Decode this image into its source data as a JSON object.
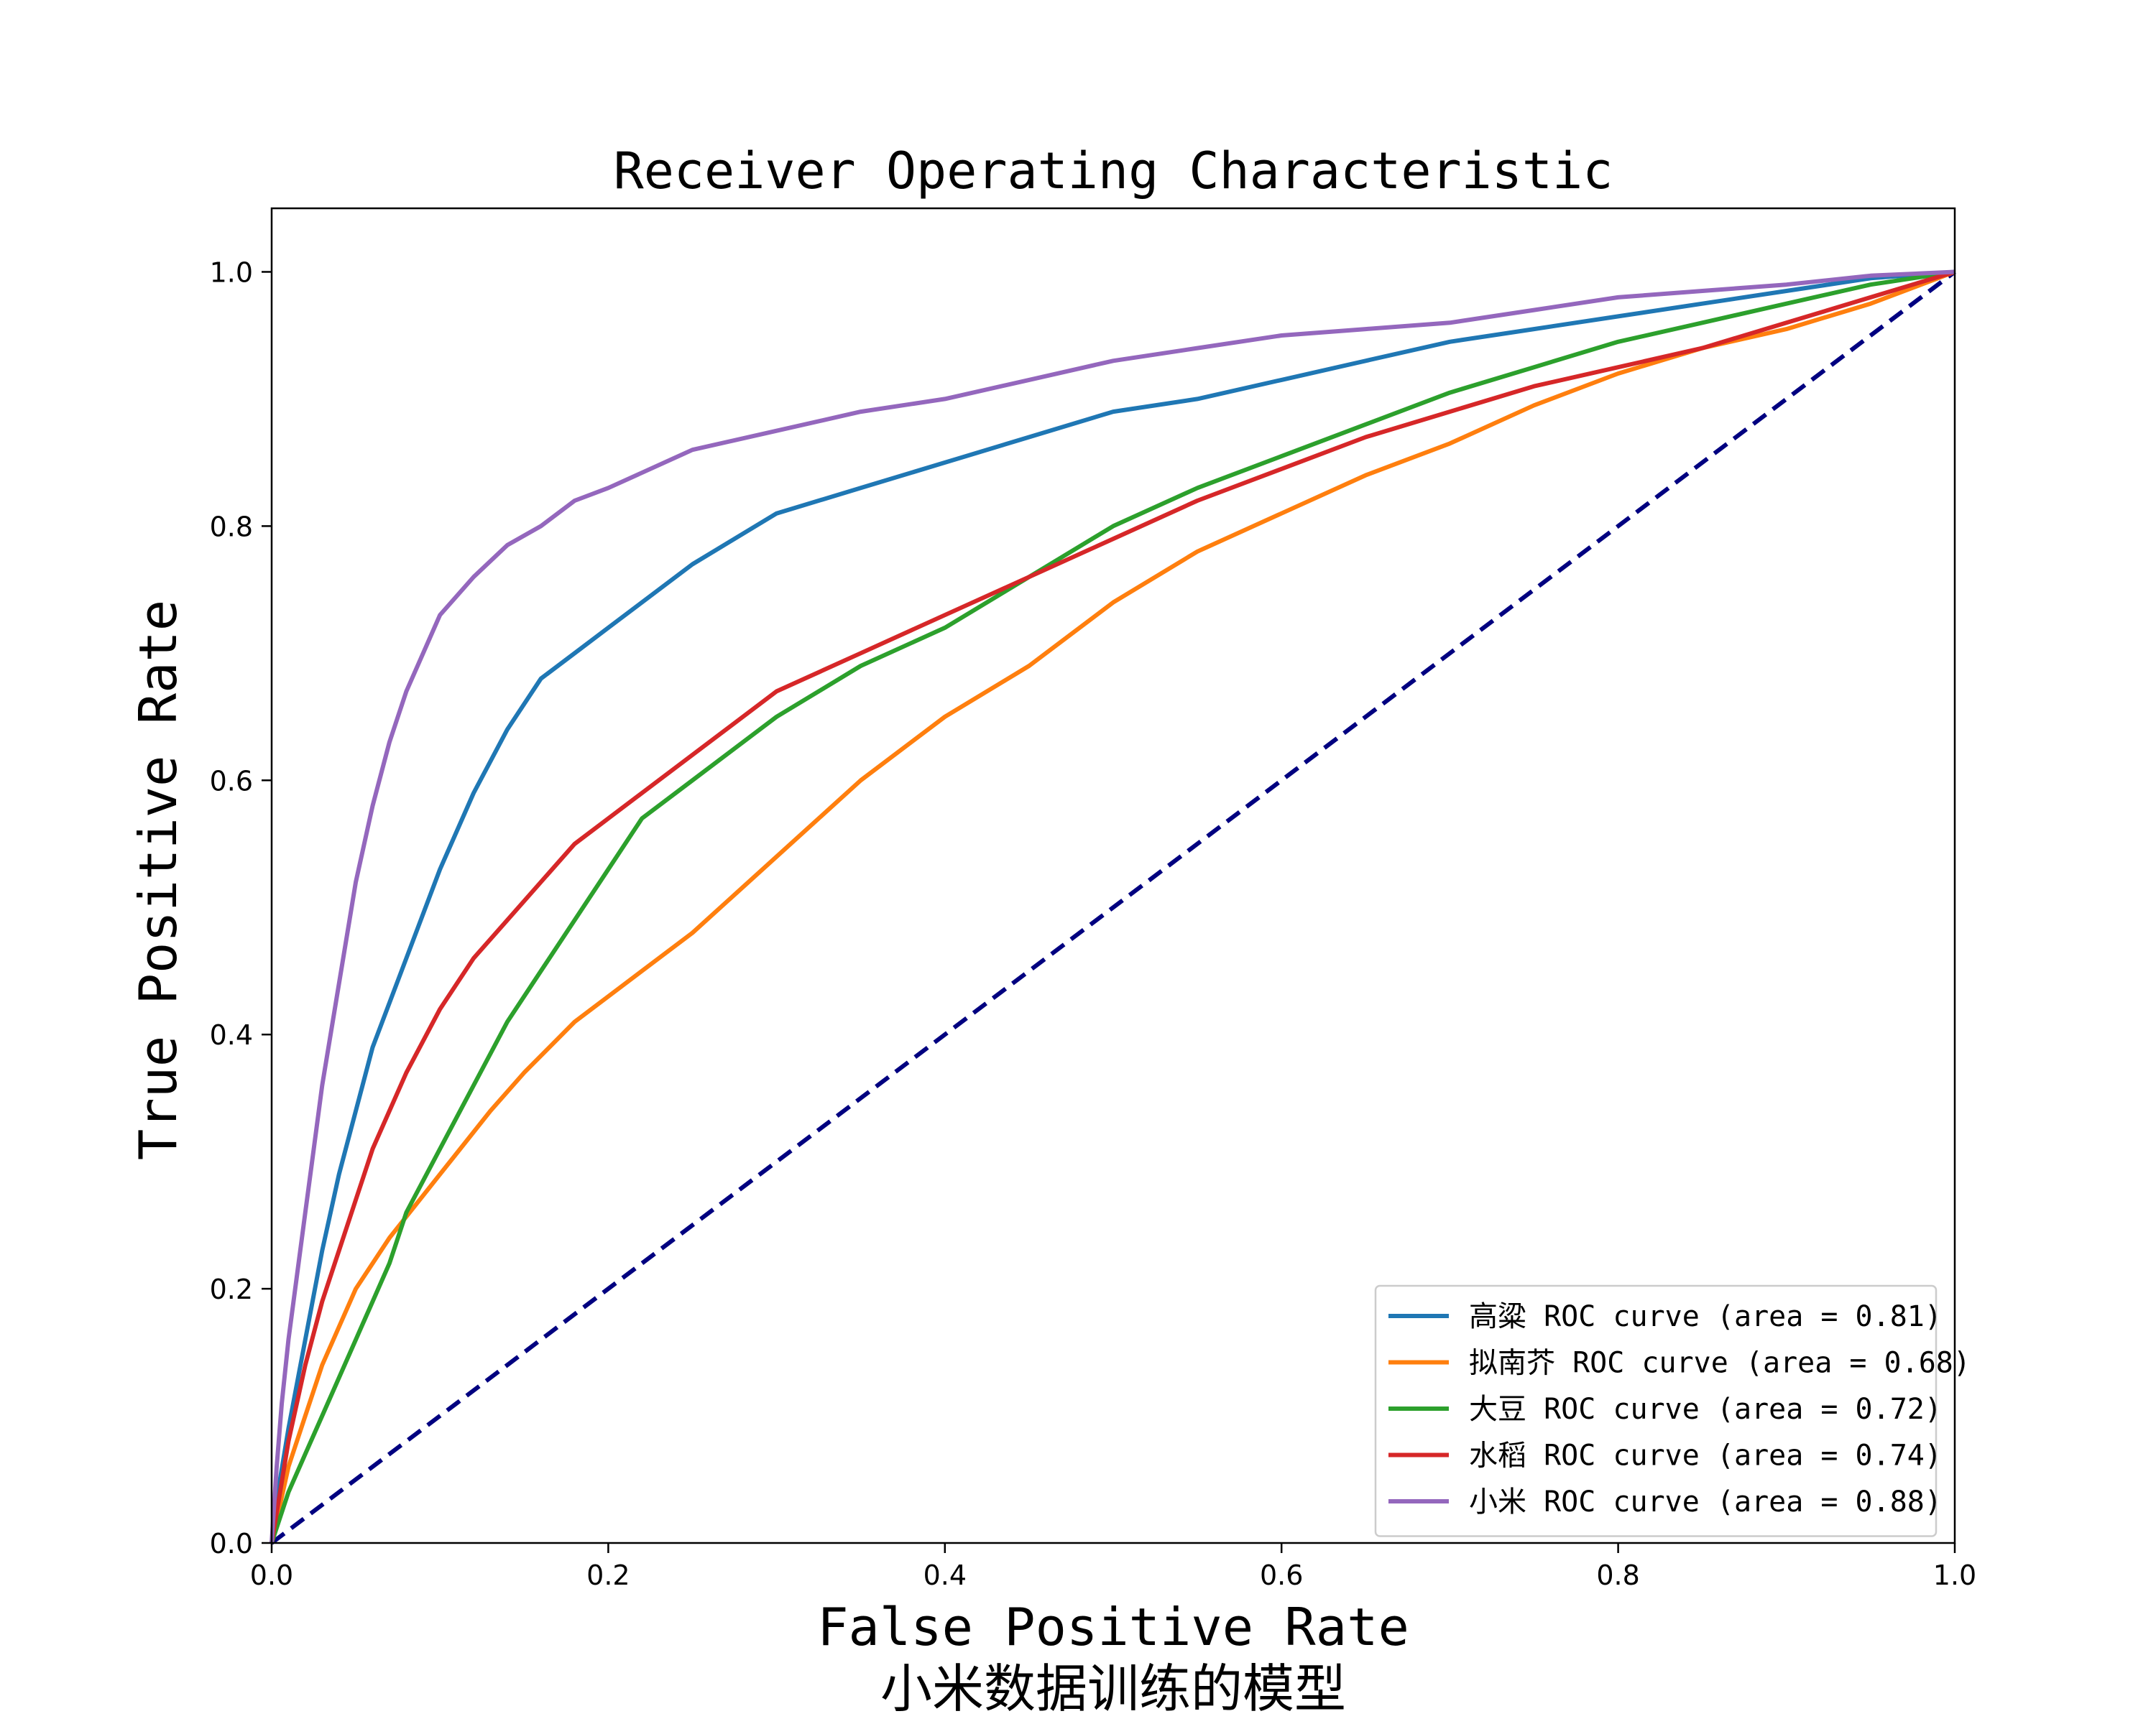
{
  "chart_data": {
    "type": "line",
    "title": "Receiver Operating Characteristic",
    "xlabel": "False Positive Rate",
    "xlabel_sub": "小米数据训练的模型",
    "ylabel": "True Positive Rate",
    "xlim": [
      0.0,
      1.0
    ],
    "ylim": [
      0.0,
      1.05
    ],
    "xticks": [
      "0.0",
      "0.2",
      "0.4",
      "0.6",
      "0.8",
      "1.0"
    ],
    "yticks": [
      "0.0",
      "0.2",
      "0.4",
      "0.6",
      "0.8",
      "1.0"
    ],
    "grid": false,
    "legend_position": "lower-right",
    "diagonal": {
      "x": [
        0,
        1
      ],
      "y": [
        0,
        1
      ],
      "color": "#000080",
      "style": "dashed"
    },
    "series": [
      {
        "name": "高粱 ROC curve (area = 0.81)",
        "color": "#1f77b4",
        "x": [
          0,
          0.005,
          0.01,
          0.02,
          0.03,
          0.04,
          0.05,
          0.06,
          0.08,
          0.1,
          0.12,
          0.14,
          0.16,
          0.18,
          0.2,
          0.25,
          0.3,
          0.35,
          0.4,
          0.45,
          0.5,
          0.55,
          0.6,
          0.65,
          0.7,
          0.75,
          0.8,
          0.85,
          0.9,
          0.95,
          1.0
        ],
        "y": [
          0,
          0.05,
          0.09,
          0.16,
          0.23,
          0.29,
          0.34,
          0.39,
          0.46,
          0.53,
          0.59,
          0.64,
          0.68,
          0.7,
          0.72,
          0.77,
          0.81,
          0.83,
          0.85,
          0.87,
          0.89,
          0.9,
          0.915,
          0.93,
          0.945,
          0.955,
          0.965,
          0.975,
          0.985,
          0.995,
          1.0
        ]
      },
      {
        "name": "拟南芥 ROC curve (area = 0.68)",
        "color": "#ff7f0e",
        "x": [
          0,
          0.005,
          0.01,
          0.02,
          0.03,
          0.04,
          0.05,
          0.07,
          0.1,
          0.13,
          0.15,
          0.18,
          0.2,
          0.25,
          0.3,
          0.35,
          0.4,
          0.45,
          0.5,
          0.55,
          0.6,
          0.65,
          0.7,
          0.75,
          0.8,
          0.85,
          0.9,
          0.95,
          1.0
        ],
        "y": [
          0,
          0.03,
          0.06,
          0.1,
          0.14,
          0.17,
          0.2,
          0.24,
          0.29,
          0.34,
          0.37,
          0.41,
          0.43,
          0.48,
          0.54,
          0.6,
          0.65,
          0.69,
          0.74,
          0.78,
          0.81,
          0.84,
          0.865,
          0.895,
          0.92,
          0.94,
          0.955,
          0.975,
          1.0
        ]
      },
      {
        "name": "大豆 ROC curve (area = 0.72)",
        "color": "#2ca02c",
        "x": [
          0,
          0.005,
          0.01,
          0.02,
          0.03,
          0.05,
          0.07,
          0.08,
          0.1,
          0.12,
          0.14,
          0.16,
          0.18,
          0.2,
          0.22,
          0.25,
          0.3,
          0.35,
          0.4,
          0.45,
          0.5,
          0.55,
          0.6,
          0.65,
          0.7,
          0.75,
          0.8,
          0.85,
          0.9,
          0.95,
          1.0
        ],
        "y": [
          0,
          0.02,
          0.04,
          0.07,
          0.1,
          0.16,
          0.22,
          0.26,
          0.31,
          0.36,
          0.41,
          0.45,
          0.49,
          0.53,
          0.57,
          0.6,
          0.65,
          0.69,
          0.72,
          0.76,
          0.8,
          0.83,
          0.855,
          0.88,
          0.905,
          0.925,
          0.945,
          0.96,
          0.975,
          0.99,
          1.0
        ]
      },
      {
        "name": "水稻 ROC curve (area = 0.74)",
        "color": "#d62728",
        "x": [
          0,
          0.005,
          0.01,
          0.02,
          0.03,
          0.04,
          0.05,
          0.06,
          0.08,
          0.1,
          0.12,
          0.14,
          0.16,
          0.18,
          0.2,
          0.22,
          0.25,
          0.3,
          0.35,
          0.4,
          0.45,
          0.5,
          0.55,
          0.6,
          0.65,
          0.7,
          0.75,
          0.8,
          0.85,
          0.9,
          0.95,
          1.0
        ],
        "y": [
          0,
          0.04,
          0.08,
          0.14,
          0.19,
          0.23,
          0.27,
          0.31,
          0.37,
          0.42,
          0.46,
          0.49,
          0.52,
          0.55,
          0.57,
          0.59,
          0.62,
          0.67,
          0.7,
          0.73,
          0.76,
          0.79,
          0.82,
          0.845,
          0.87,
          0.89,
          0.91,
          0.925,
          0.94,
          0.96,
          0.98,
          1.0
        ]
      },
      {
        "name": "小米 ROC curve (area = 0.88)",
        "color": "#9467bd",
        "x": [
          0,
          0.003,
          0.006,
          0.01,
          0.015,
          0.02,
          0.025,
          0.03,
          0.04,
          0.05,
          0.06,
          0.07,
          0.08,
          0.09,
          0.1,
          0.12,
          0.14,
          0.16,
          0.18,
          0.2,
          0.25,
          0.3,
          0.35,
          0.4,
          0.45,
          0.5,
          0.55,
          0.6,
          0.65,
          0.7,
          0.75,
          0.8,
          0.85,
          0.9,
          0.95,
          1.0
        ],
        "y": [
          0,
          0.06,
          0.11,
          0.16,
          0.21,
          0.26,
          0.31,
          0.36,
          0.44,
          0.52,
          0.58,
          0.63,
          0.67,
          0.7,
          0.73,
          0.76,
          0.785,
          0.8,
          0.82,
          0.83,
          0.86,
          0.875,
          0.89,
          0.9,
          0.915,
          0.93,
          0.94,
          0.95,
          0.955,
          0.96,
          0.97,
          0.98,
          0.985,
          0.99,
          0.997,
          1.0
        ]
      }
    ]
  }
}
